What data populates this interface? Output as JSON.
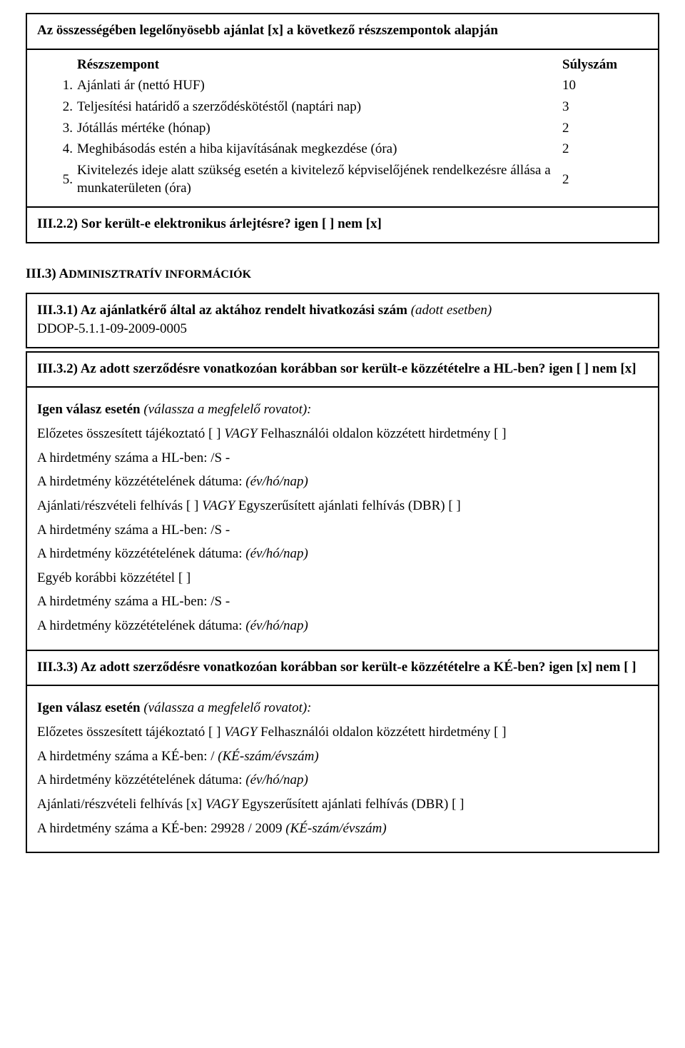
{
  "topbox": {
    "title": "Az összességében legelőnyösebb ajánlat [x] a következő részszempontok alapján",
    "col_left": "Részszempont",
    "col_right": "Súlyszám",
    "rows": [
      {
        "n": "1.",
        "label": "Ajánlati ár (nettó HUF)",
        "weight": "10"
      },
      {
        "n": "2.",
        "label": "Teljesítési határidő a szerződéskötéstől (naptári nap)",
        "weight": "3"
      },
      {
        "n": "3.",
        "label": "Jótállás mértéke (hónap)",
        "weight": "2"
      },
      {
        "n": "4.",
        "label": "Meghibásodás estén a hiba kijavításának megkezdése (óra)",
        "weight": "2"
      },
      {
        "n": "5.",
        "label": "Kivitelezés ideje alatt szükség esetén a kivitelező képviselőjének rendelkezésre állása a munkaterületen (óra)",
        "weight": "2"
      }
    ],
    "iii22": "III.2.2) Sor került-e elektronikus árlejtésre? igen [ ] nem [x]"
  },
  "section3_heading_prefix": "III.3) A",
  "section3_heading_rest": "DMINISZTRATÍV INFORMÁCIÓK",
  "box31": {
    "title_bold": "III.3.1) Az ajánlatkérő által az aktához rendelt hivatkozási szám ",
    "title_italic": "(adott esetben)",
    "value": "DDOP-5.1.1-09-2009-0005"
  },
  "box32": {
    "head_bold": "III.3.2) Az adott szerződésre vonatkozóan korábban sor került-e közzétételre a HL-ben?",
    "head_tail": " igen [ ] nem [x]",
    "igen_bold": "Igen válasz esetén ",
    "igen_italic": "(válassza a megfelelő rovatot):",
    "l1a": "Előzetes összesített tájékoztató [ ] ",
    "l1_vagy": "VAGY",
    "l1b": " Felhasználói oldalon közzétett hirdetmény [ ]",
    "num_hl": "A hirdetmény száma a HL-ben: /S -",
    "date_prefix": "A hirdetmény közzétételének dátuma: ",
    "date_italic": "(év/hó/nap)",
    "l2a": "Ajánlati/részvételi felhívás [ ] ",
    "l2_vagy": "VAGY",
    "l2b": " Egyszerűsített ajánlati felhívás (DBR) [ ]",
    "l3": "Egyéb korábbi közzététel [ ]"
  },
  "box33": {
    "head_bold": "III.3.3) Az adott szerződésre vonatkozóan korábban sor került-e közzétételre a KÉ-ben?",
    "head_tail": " igen [x] nem [ ]",
    "igen_bold": "Igen válasz esetén ",
    "igen_italic": "(válassza a megfelelő rovatot):",
    "l1a": "Előzetes összesített tájékoztató [ ] ",
    "l1_vagy": "VAGY",
    "l1b": " Felhasználói oldalon közzétett hirdetmény [ ]",
    "num_ke_a": "A hirdetmény száma a KÉ-ben: / ",
    "num_ke_italic": "(KÉ-szám/évszám)",
    "date_prefix": "A hirdetmény közzétételének dátuma: ",
    "date_italic": "(év/hó/nap)",
    "l2a": "Ajánlati/részvételi felhívás [x] ",
    "l2_vagy": "VAGY",
    "l2b": " Egyszerűsített ajánlati felhívás (DBR) [ ]",
    "num_ke_b": "A hirdetmény száma a KÉ-ben: 29928 / 2009 ",
    "num_ke_b_italic": "(KÉ-szám/évszám)"
  }
}
